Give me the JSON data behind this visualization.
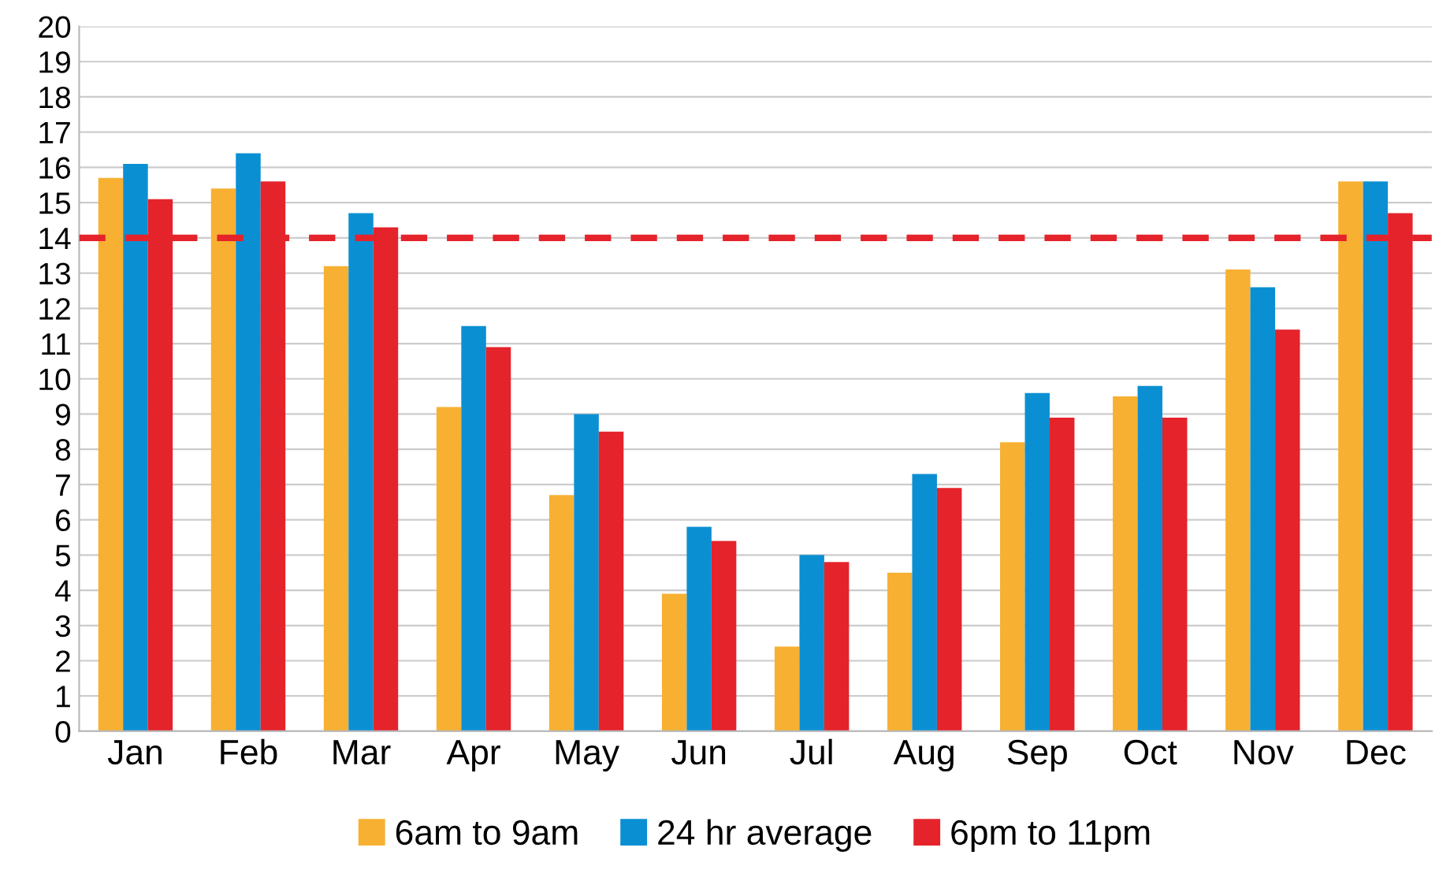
{
  "chart_data": {
    "type": "bar",
    "categories": [
      "Jan",
      "Feb",
      "Mar",
      "Apr",
      "May",
      "Jun",
      "Jul",
      "Aug",
      "Sep",
      "Oct",
      "Nov",
      "Dec"
    ],
    "series": [
      {
        "name": "6am to 9am",
        "color": "#f7b032",
        "values": [
          15.7,
          15.4,
          13.2,
          9.2,
          6.7,
          3.9,
          2.4,
          4.5,
          8.2,
          9.5,
          13.1,
          15.6
        ]
      },
      {
        "name": "24 hr average",
        "color": "#0b8fd3",
        "values": [
          16.1,
          16.4,
          14.7,
          11.5,
          9.0,
          5.8,
          5.0,
          7.3,
          9.6,
          9.8,
          12.6,
          15.6
        ]
      },
      {
        "name": "6pm to 11pm",
        "color": "#e5232b",
        "values": [
          15.1,
          15.6,
          14.3,
          10.9,
          8.5,
          5.4,
          4.8,
          6.9,
          8.9,
          8.9,
          11.4,
          14.7
        ]
      }
    ],
    "ylim": [
      0,
      20
    ],
    "yticks": [
      0,
      1,
      2,
      3,
      4,
      5,
      6,
      7,
      8,
      9,
      10,
      11,
      12,
      13,
      14,
      15,
      16,
      17,
      18,
      19,
      20
    ],
    "ref_lines": [
      {
        "axis": "y",
        "value": 14,
        "color": "#e5232b",
        "line_style": "dashed"
      }
    ],
    "grid": "y",
    "legend": "bottom"
  }
}
